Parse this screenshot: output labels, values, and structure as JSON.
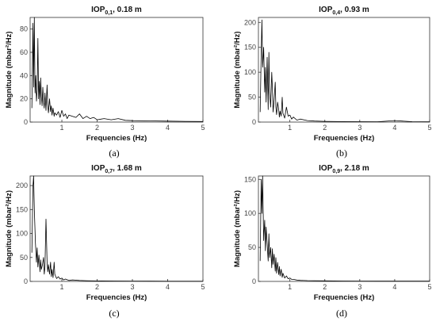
{
  "chart_data": [
    {
      "type": "line",
      "title_main": "IOP",
      "title_sub": "0,1",
      "title_rest": ", 0.18 m",
      "xlabel": "Frequencies (Hz)",
      "ylabel": "Magnitude (mbar²/Hz)",
      "caption": "(a)",
      "xlim": [
        0.1,
        5
      ],
      "ylim": [
        0,
        90
      ],
      "xticks": [
        1,
        2,
        3,
        4,
        5
      ],
      "yticks": [
        0,
        20,
        40,
        60,
        80
      ],
      "grid": false,
      "x": [
        0.15,
        0.18,
        0.2,
        0.22,
        0.24,
        0.26,
        0.28,
        0.3,
        0.32,
        0.34,
        0.36,
        0.38,
        0.4,
        0.42,
        0.44,
        0.46,
        0.48,
        0.5,
        0.52,
        0.55,
        0.58,
        0.6,
        0.62,
        0.65,
        0.68,
        0.7,
        0.72,
        0.75,
        0.78,
        0.8,
        0.85,
        0.9,
        0.95,
        1.0,
        1.05,
        1.1,
        1.15,
        1.2,
        1.3,
        1.4,
        1.5,
        1.6,
        1.7,
        1.8,
        1.9,
        2.0,
        2.2,
        2.4,
        2.6,
        2.8,
        3.0,
        3.5,
        4.0,
        4.5,
        5.0
      ],
      "y": [
        12,
        85,
        30,
        92,
        25,
        40,
        18,
        28,
        72,
        20,
        35,
        15,
        38,
        22,
        14,
        30,
        18,
        12,
        25,
        10,
        32,
        15,
        8,
        20,
        9,
        14,
        6,
        12,
        5,
        8,
        6,
        9,
        4,
        10,
        5,
        7,
        3,
        6,
        5,
        4,
        7,
        3,
        5,
        3,
        4,
        2,
        3,
        2,
        3,
        1.5,
        1.2,
        1,
        0.8,
        0.6,
        0.5
      ]
    },
    {
      "type": "line",
      "title_main": "IOP",
      "title_sub": "0,4",
      "title_rest": ", 0.93 m",
      "xlabel": "Frequencies (Hz)",
      "ylabel": "Magnitude (mbar²/Hz)",
      "caption": "(b)",
      "xlim": [
        0.1,
        5
      ],
      "ylim": [
        0,
        210
      ],
      "xticks": [
        1,
        2,
        3,
        4,
        5
      ],
      "yticks": [
        0,
        50,
        100,
        150,
        200
      ],
      "grid": false,
      "x": [
        0.15,
        0.18,
        0.2,
        0.22,
        0.25,
        0.28,
        0.3,
        0.32,
        0.35,
        0.38,
        0.4,
        0.42,
        0.45,
        0.48,
        0.5,
        0.52,
        0.55,
        0.58,
        0.6,
        0.62,
        0.65,
        0.68,
        0.7,
        0.72,
        0.75,
        0.78,
        0.8,
        0.85,
        0.9,
        0.95,
        1.0,
        1.05,
        1.1,
        1.2,
        1.3,
        1.5,
        1.7,
        2.0,
        2.5,
        3.0,
        3.5,
        4.0,
        4.5,
        5.0
      ],
      "y": [
        20,
        140,
        205,
        110,
        150,
        60,
        110,
        40,
        130,
        25,
        140,
        60,
        30,
        100,
        70,
        20,
        45,
        80,
        30,
        15,
        40,
        25,
        10,
        22,
        12,
        50,
        18,
        8,
        30,
        12,
        14,
        6,
        10,
        4,
        6,
        3,
        2,
        1.5,
        1,
        0.8,
        0.6,
        3,
        0.8,
        0.5
      ]
    },
    {
      "type": "line",
      "title_main": "IOP",
      "title_sub": "0,7",
      "title_rest": ", 1.68 m",
      "xlabel": "Frequencies (Hz)",
      "ylabel": "Magnitude (mbar²/Hz)",
      "caption": "(c)",
      "xlim": [
        0.1,
        5
      ],
      "ylim": [
        0,
        220
      ],
      "xticks": [
        1,
        2,
        3,
        4,
        5
      ],
      "yticks": [
        0,
        50,
        100,
        150,
        200
      ],
      "grid": false,
      "x": [
        0.15,
        0.18,
        0.2,
        0.22,
        0.25,
        0.28,
        0.3,
        0.32,
        0.35,
        0.38,
        0.4,
        0.42,
        0.45,
        0.48,
        0.5,
        0.52,
        0.55,
        0.58,
        0.6,
        0.62,
        0.65,
        0.68,
        0.7,
        0.72,
        0.75,
        0.78,
        0.8,
        0.85,
        0.9,
        0.95,
        1.0,
        1.05,
        1.1,
        1.2,
        1.3,
        1.5,
        1.7,
        2.0,
        2.5,
        3.0,
        3.5,
        4.0,
        4.5,
        5.0
      ],
      "y": [
        60,
        200,
        220,
        150,
        80,
        40,
        70,
        30,
        55,
        20,
        45,
        25,
        35,
        50,
        15,
        30,
        130,
        40,
        20,
        35,
        15,
        40,
        10,
        25,
        8,
        40,
        15,
        6,
        10,
        5,
        7,
        3,
        5,
        2,
        3,
        2,
        1.5,
        1,
        0.8,
        0.6,
        0.5,
        0.4,
        0.3,
        0.3
      ]
    },
    {
      "type": "line",
      "title_main": "IOP",
      "title_sub": "0,9",
      "title_rest": ", 2.18 m",
      "xlabel": "Frequencies (Hz)",
      "ylabel": "Magnitude (mbar²/Hz)",
      "caption": "(d)",
      "xlim": [
        0.1,
        5
      ],
      "ylim": [
        0,
        155
      ],
      "xticks": [
        1,
        2,
        3,
        4,
        5
      ],
      "yticks": [
        0,
        50,
        100,
        150
      ],
      "grid": false,
      "x": [
        0.15,
        0.18,
        0.2,
        0.22,
        0.25,
        0.28,
        0.3,
        0.32,
        0.35,
        0.38,
        0.4,
        0.42,
        0.45,
        0.48,
        0.5,
        0.52,
        0.55,
        0.58,
        0.6,
        0.62,
        0.65,
        0.68,
        0.7,
        0.72,
        0.75,
        0.78,
        0.8,
        0.85,
        0.9,
        0.95,
        1.0,
        1.05,
        1.1,
        1.2,
        1.3,
        1.5,
        1.7,
        2.0,
        2.5,
        3.0,
        3.5,
        4.0,
        4.5,
        5.0
      ],
      "y": [
        30,
        150,
        100,
        155,
        60,
        90,
        45,
        80,
        55,
        30,
        70,
        35,
        50,
        20,
        48,
        25,
        40,
        15,
        35,
        12,
        28,
        10,
        22,
        8,
        18,
        6,
        12,
        5,
        8,
        4,
        5,
        3,
        3,
        2,
        1.5,
        1.2,
        1,
        0.8,
        0.6,
        0.5,
        0.4,
        0.4,
        0.3,
        0.3
      ]
    }
  ]
}
